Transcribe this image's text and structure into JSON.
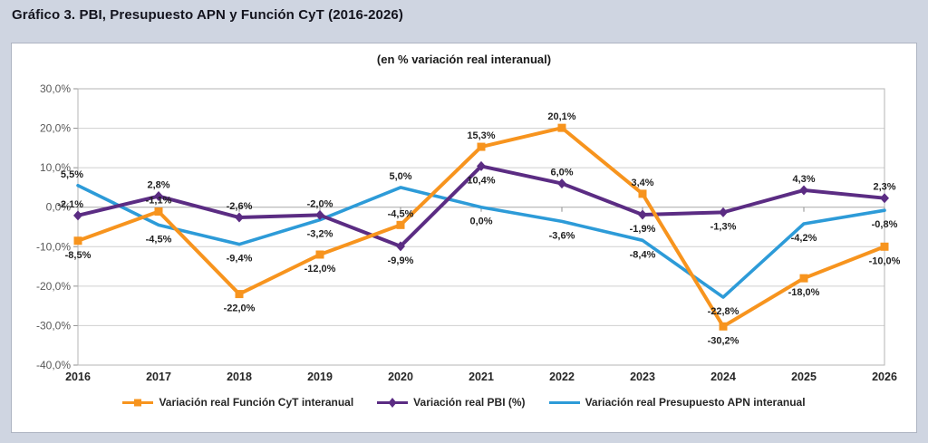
{
  "chart_data": {
    "type": "line",
    "title": "Gráfico 3. PBI, Presupuesto APN y Función CyT (2016-2026)",
    "subtitle": "(en % variación real interanual)",
    "categories": [
      "2016",
      "2017",
      "2018",
      "2019",
      "2020",
      "2021",
      "2022",
      "2023",
      "2024",
      "2025",
      "2026"
    ],
    "y_ticks": [
      "30,0%",
      "20,0%",
      "10,0%",
      "0,0%",
      "-10,0%",
      "-20,0%",
      "-30,0%",
      "-40,0%"
    ],
    "ylim": [
      -40,
      30
    ],
    "grid": "horizontal",
    "legend_position": "bottom",
    "colors": {
      "funcion_cyt": "#F7941E",
      "pbi": "#5B2C83",
      "presupuesto_apn": "#2D9BD8"
    },
    "series": [
      {
        "name": "Variación real Función CyT interanual",
        "color": "#F7941E",
        "marker": "square",
        "values": [
          -8.5,
          -1.1,
          -22.0,
          -12.0,
          -4.5,
          15.3,
          20.1,
          3.4,
          -30.2,
          -18.0,
          -10.0
        ],
        "labels": [
          "-8,5%",
          "-1,1%",
          "-22,0%",
          "-12,0%",
          "-4,5%",
          "15,3%",
          "20,1%",
          "3,4%",
          "-30,2%",
          "-18,0%",
          "-10,0%"
        ],
        "label_pos": [
          "b",
          "a",
          "b",
          "b",
          "a",
          "a",
          "a",
          "a",
          "b",
          "b",
          "b"
        ]
      },
      {
        "name": "Variación real PBI (%)",
        "color": "#5B2C83",
        "marker": "diamond",
        "values": [
          -2.1,
          2.8,
          -2.6,
          -2.0,
          -9.9,
          10.4,
          6.0,
          -1.9,
          -1.3,
          4.3,
          2.3
        ],
        "labels": [
          "-2,1%",
          "2,8%",
          "-2,6%",
          "-2,0%",
          "-9,9%",
          "10,4%",
          "6,0%",
          "-1,9%",
          "-1,3%",
          "4,3%",
          "2,3%"
        ],
        "label_pos": [
          "l",
          "a",
          "a",
          "a",
          "b",
          "b",
          "a",
          "b",
          "b",
          "a",
          "a"
        ]
      },
      {
        "name": "Variación real Presupuesto APN interanual",
        "color": "#2D9BD8",
        "marker": "none",
        "values": [
          5.5,
          -4.5,
          -9.4,
          -3.2,
          5.0,
          0.0,
          -3.6,
          -8.4,
          -22.8,
          -4.2,
          -0.8
        ],
        "labels": [
          "5,5%",
          "-4,5%",
          "-9,4%",
          "-3,2%",
          "5,0%",
          "0,0%",
          "-3,6%",
          "-8,4%",
          "-22,8%",
          "-4,2%",
          "-0,8%"
        ],
        "label_pos": [
          "l",
          "b",
          "b",
          "b",
          "a",
          "b",
          "b",
          "b",
          "b",
          "b",
          "b"
        ]
      }
    ]
  }
}
